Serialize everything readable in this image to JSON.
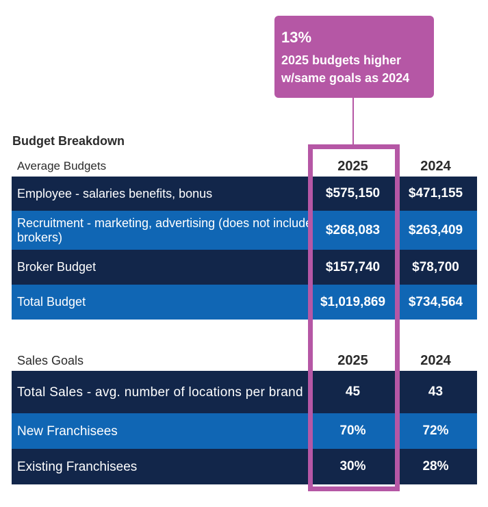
{
  "callout": {
    "percent": "13%",
    "line1": "2025 budgets higher",
    "line2": "w/same goals as 2024"
  },
  "budget": {
    "title": "Budget Breakdown",
    "header_label": "Average Budgets",
    "col_2025": "2025",
    "col_2024": "2024",
    "rows": [
      {
        "label": "Employee - salaries benefits, bonus",
        "v2025": "$575,150",
        "v2024": "$471,155"
      },
      {
        "label": "Recruitment - marketing, advertising (does not include brokers)",
        "v2025": "$268,083",
        "v2024": "$263,409"
      },
      {
        "label": "Broker Budget",
        "v2025": "$157,740",
        "v2024": "$78,700"
      },
      {
        "label": "Total Budget",
        "v2025": "$1,019,869",
        "v2024": "$734,564"
      }
    ]
  },
  "goals": {
    "header_label": "Sales Goals",
    "col_2025": "2025",
    "col_2024": "2024",
    "rows": [
      {
        "label": "Total Sales - avg. number of locations per brand",
        "v2025": "45",
        "v2024": "43"
      },
      {
        "label": "New Franchisees",
        "v2025": "70%",
        "v2024": "72%"
      },
      {
        "label": "Existing Franchisees",
        "v2025": "30%",
        "v2024": "28%"
      }
    ]
  },
  "colors": {
    "dark_row": "#12264a",
    "blue_row": "#1066b4",
    "highlight": "#b557a5"
  },
  "chart_data": {
    "type": "table",
    "tables": [
      {
        "title": "Budget Breakdown",
        "columns": [
          "Average Budgets",
          "2025",
          "2024"
        ],
        "rows": [
          [
            "Employee - salaries benefits, bonus",
            575150,
            471155
          ],
          [
            "Recruitment - marketing, advertising (does not include brokers)",
            268083,
            263409
          ],
          [
            "Broker Budget",
            157740,
            78700
          ],
          [
            "Total Budget",
            1019869,
            734564
          ]
        ]
      },
      {
        "title": "",
        "columns": [
          "Sales Goals",
          "2025",
          "2024"
        ],
        "rows": [
          [
            "Total Sales - avg. number of locations per brand",
            45,
            43
          ],
          [
            "New Franchisees",
            "70%",
            "72%"
          ],
          [
            "Existing Franchisees",
            "30%",
            "28%"
          ]
        ]
      }
    ],
    "annotation": "13% 2025 budgets higher w/same goals as 2024"
  }
}
